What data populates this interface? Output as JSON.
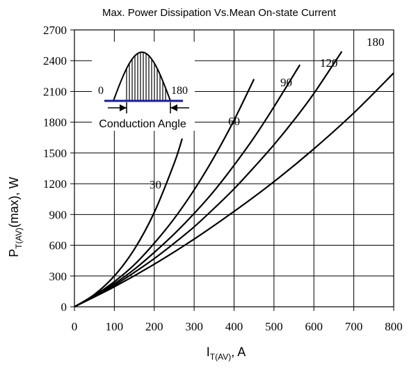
{
  "chart_data": {
    "type": "line",
    "title": "Max. Power Dissipation Vs.Mean On-state Current",
    "xlabel": {
      "main": "I",
      "sub": "T(AV)",
      "suffix": ",  A"
    },
    "ylabel": {
      "main": "P",
      "sub": "T(AV)",
      "suffix": "(max),  W"
    },
    "xlim": [
      0,
      800
    ],
    "ylim": [
      0,
      2700
    ],
    "xticks": [
      0,
      100,
      200,
      300,
      400,
      500,
      600,
      700,
      800
    ],
    "yticks": [
      0,
      300,
      600,
      900,
      1200,
      1500,
      1800,
      2100,
      2400,
      2700
    ],
    "grid": true,
    "series": [
      {
        "name": "30",
        "x": [
          0,
          50,
          100,
          150,
          200,
          250,
          270
        ],
        "y": [
          0,
          120,
          300,
          560,
          920,
          1400,
          1640
        ]
      },
      {
        "name": "60",
        "x": [
          0,
          50,
          100,
          150,
          200,
          250,
          300,
          350,
          400,
          450
        ],
        "y": [
          0,
          110,
          245,
          410,
          620,
          860,
          1140,
          1460,
          1820,
          2220
        ]
      },
      {
        "name": "90",
        "x": [
          0,
          50,
          100,
          150,
          200,
          250,
          300,
          350,
          400,
          450,
          500,
          565
        ],
        "y": [
          0,
          105,
          225,
          365,
          530,
          710,
          910,
          1130,
          1380,
          1650,
          1950,
          2360
        ]
      },
      {
        "name": "120",
        "x": [
          0,
          50,
          100,
          150,
          200,
          250,
          300,
          350,
          400,
          450,
          500,
          550,
          600,
          670
        ],
        "y": [
          0,
          100,
          210,
          335,
          470,
          620,
          780,
          960,
          1150,
          1360,
          1580,
          1820,
          2080,
          2490
        ]
      },
      {
        "name": "180",
        "x": [
          0,
          100,
          200,
          300,
          400,
          500,
          600,
          700,
          800
        ],
        "y": [
          0,
          195,
          415,
          660,
          930,
          1220,
          1540,
          1890,
          2280
        ]
      }
    ],
    "curve_labels": [
      "30",
      "60",
      "90",
      "120",
      "180"
    ],
    "inset": {
      "left_label": "0",
      "right_label": "180",
      "caption": "Conduction Angle",
      "line_color": "#1a1aa0"
    },
    "colors": {
      "curve": "#000000",
      "axis": "#000000",
      "grid": "#000000"
    }
  }
}
